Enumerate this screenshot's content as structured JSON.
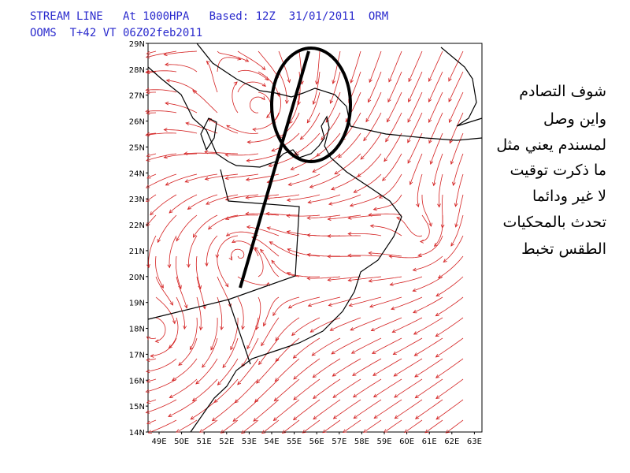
{
  "header": {
    "line1": "STREAM LINE   At 1000HPA   Based: 12Z  31/01/2011  ORM",
    "line2": "OOMS  T+42 VT 06Z02feb2011"
  },
  "lat_labels": [
    "14N",
    "15N",
    "16N",
    "17N",
    "18N",
    "19N",
    "20N",
    "21N",
    "22N",
    "23N",
    "24N",
    "25N",
    "26N",
    "27N",
    "28N",
    "29N"
  ],
  "lon_labels": [
    "49E",
    "50E",
    "51E",
    "52E",
    "53E",
    "54E",
    "55E",
    "56E",
    "57E",
    "58E",
    "59E",
    "60E",
    "61E",
    "62E",
    "63E"
  ],
  "note": {
    "lines": [
      "شوف التصادم",
      "واين وصل",
      "لمسندم يعني مثل",
      "ما ذكرت توقيت",
      "لا غير ودائما",
      "تحدث بالمحكيات",
      "الطقس تخبط"
    ]
  }
}
